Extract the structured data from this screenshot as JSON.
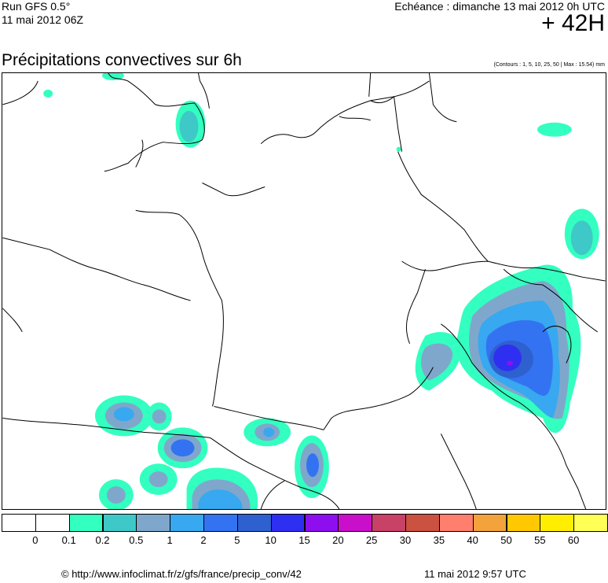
{
  "header": {
    "run_label": "Run GFS 0.5°",
    "run_date": "11 mai 2012 06Z",
    "echeance": "Echéance : dimanche 13 mai 2012 0h UTC",
    "lead_time": "+ 42H",
    "title": "Précipitations convectives sur 6h",
    "contours_note": "(Contours : 1, 5, 10, 25, 50 | Max : 15.54) mm"
  },
  "scale": {
    "labels": [
      "0",
      "0.1",
      "0.2",
      "0.5",
      "1",
      "2",
      "5",
      "10",
      "15",
      "20",
      "25",
      "30",
      "35",
      "40",
      "50",
      "55",
      "60"
    ],
    "colors": [
      "#ffffff",
      "#ffffff",
      "#33ffc0",
      "#3fc8c8",
      "#7fa7cc",
      "#38a8f0",
      "#3373f2",
      "#2e60cf",
      "#2f2ff2",
      "#8d0ff0",
      "#c90fc9",
      "#c84166",
      "#cb5140",
      "#ff7f6f",
      "#f2a33c",
      "#ffc800",
      "#ffee00",
      "#ffff55"
    ]
  },
  "footer": {
    "url": "© http://www.infoclimat.fr/z/gfs/france/precip_conv/42",
    "date": "11 mai 2012  9:57 UTC"
  }
}
